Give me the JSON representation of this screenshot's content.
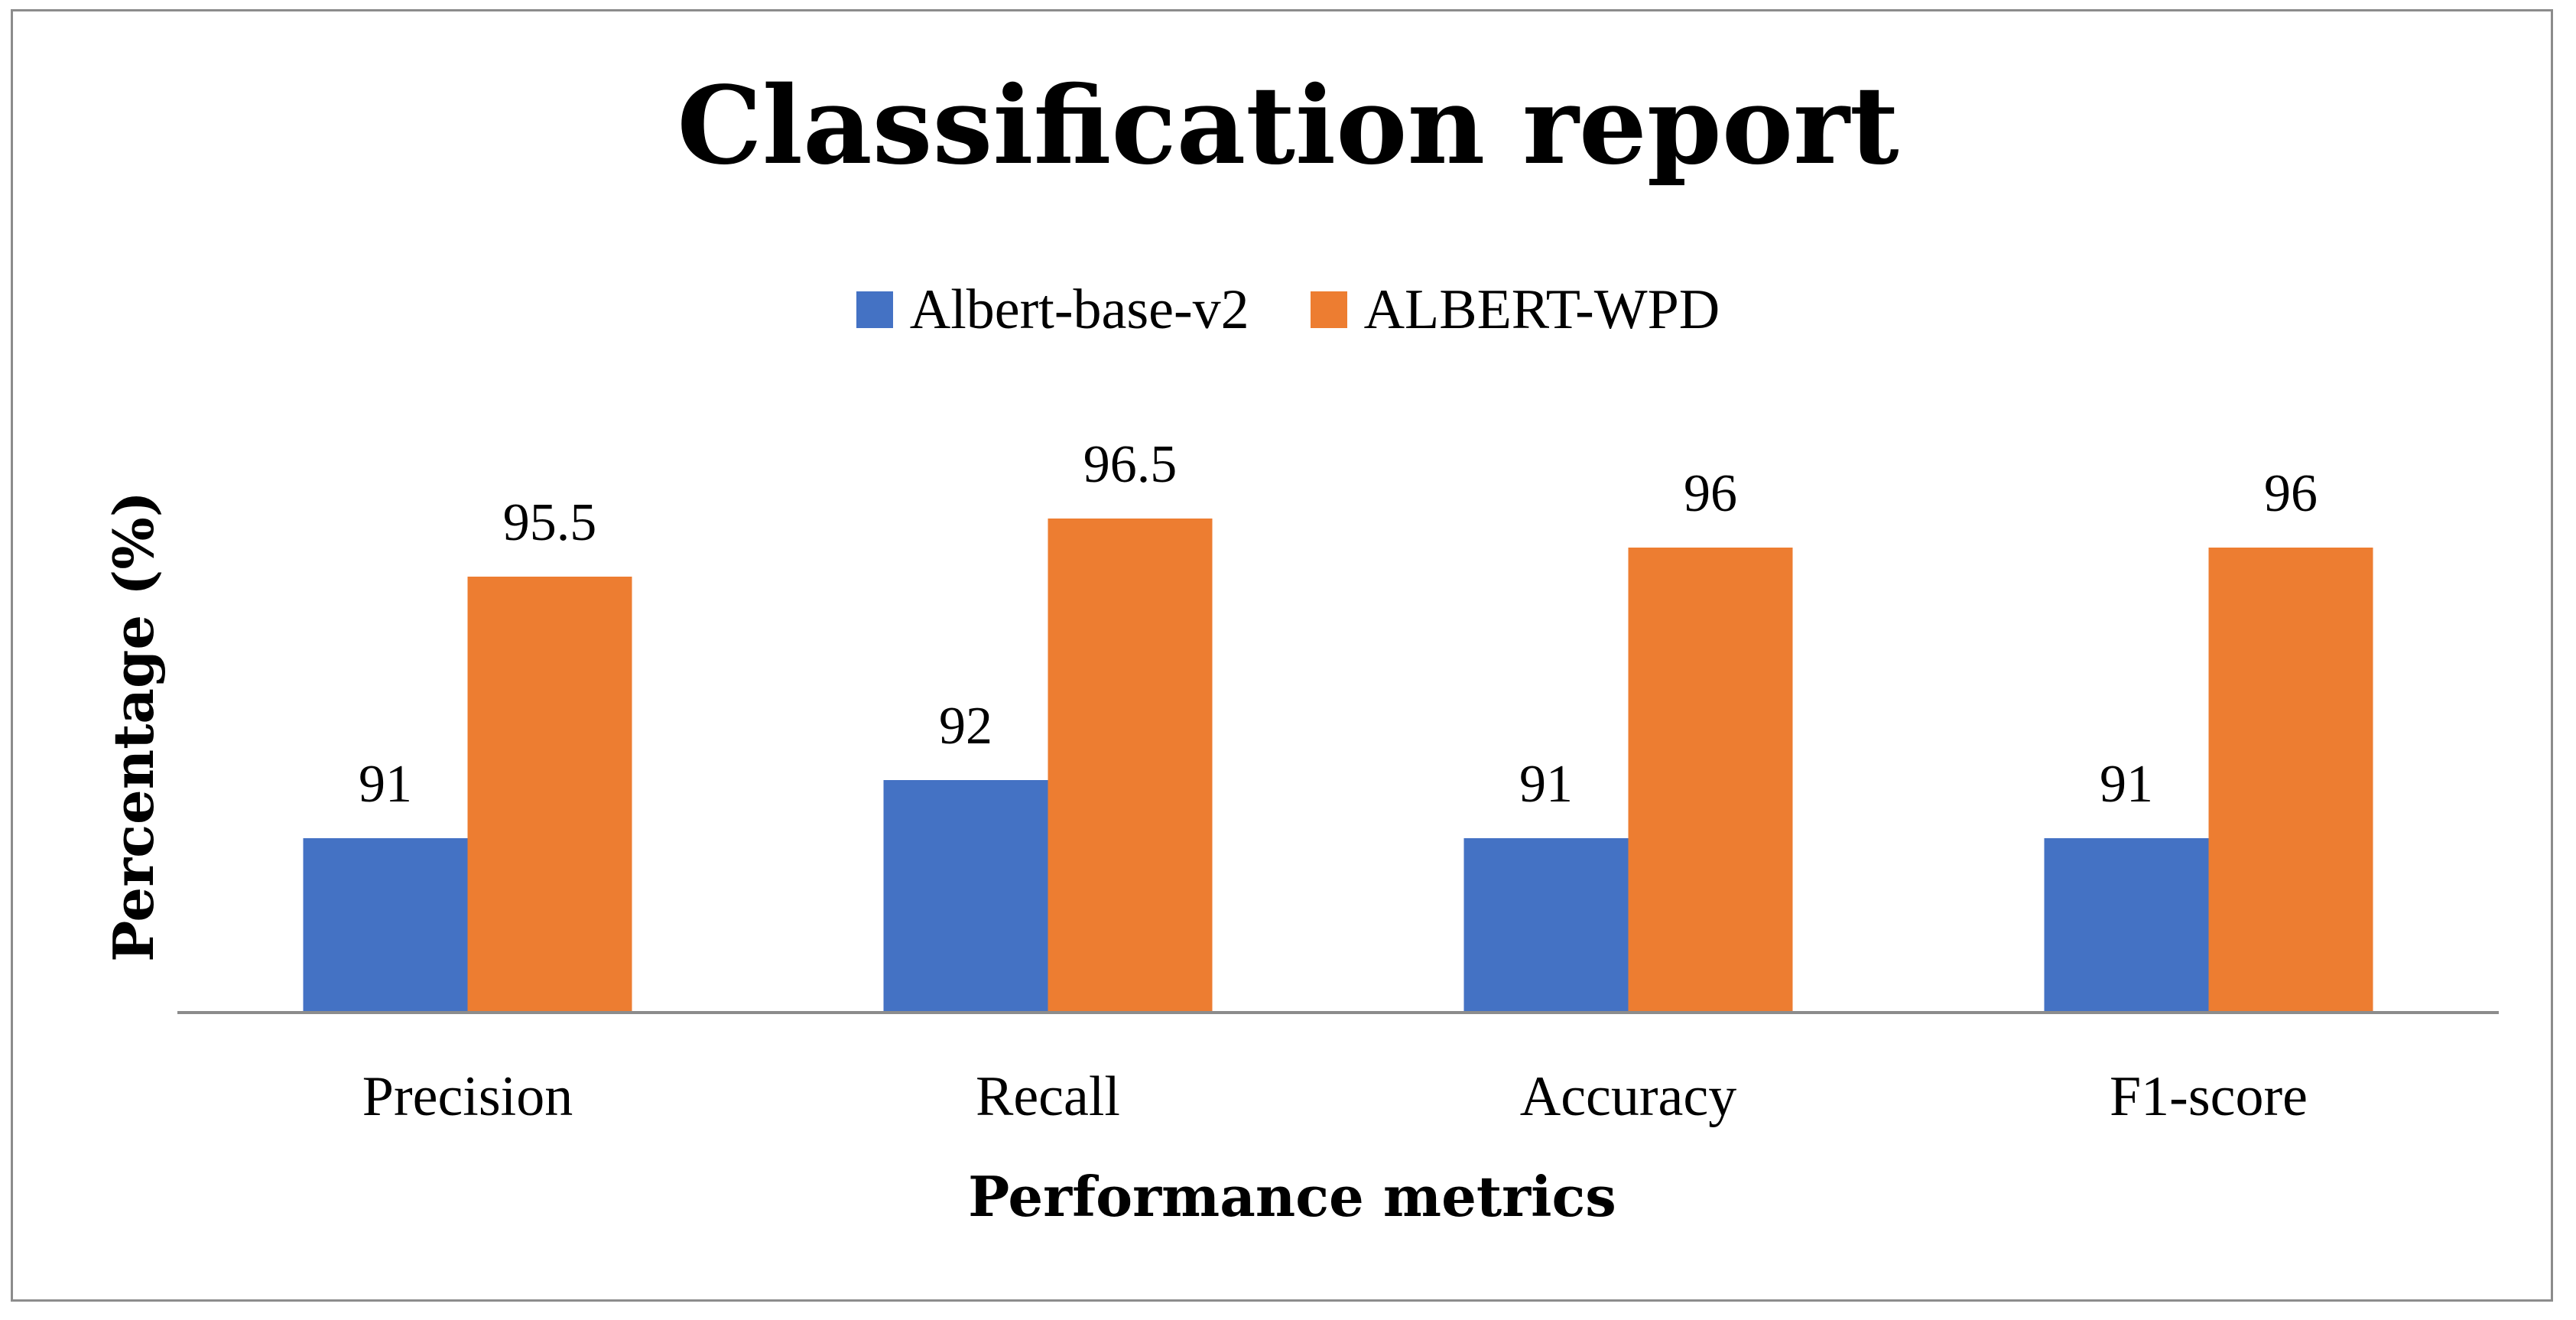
{
  "chart_data": {
    "type": "bar",
    "title": "Classification report",
    "xlabel": "Performance metrics",
    "ylabel": "Percentage (%)",
    "categories": [
      "Precision",
      "Recall",
      "Accuracy",
      "F1-score"
    ],
    "series": [
      {
        "name": "Albert-base-v2",
        "color": "#4472C4",
        "values": [
          91,
          92,
          91,
          91
        ]
      },
      {
        "name": "ALBERT-WPD",
        "color": "#ED7D31",
        "values": [
          95.5,
          96.5,
          96,
          96
        ]
      }
    ],
    "ylim": [
      88,
      100
    ],
    "grid": false,
    "legend": "top-center",
    "data_labels": true
  }
}
